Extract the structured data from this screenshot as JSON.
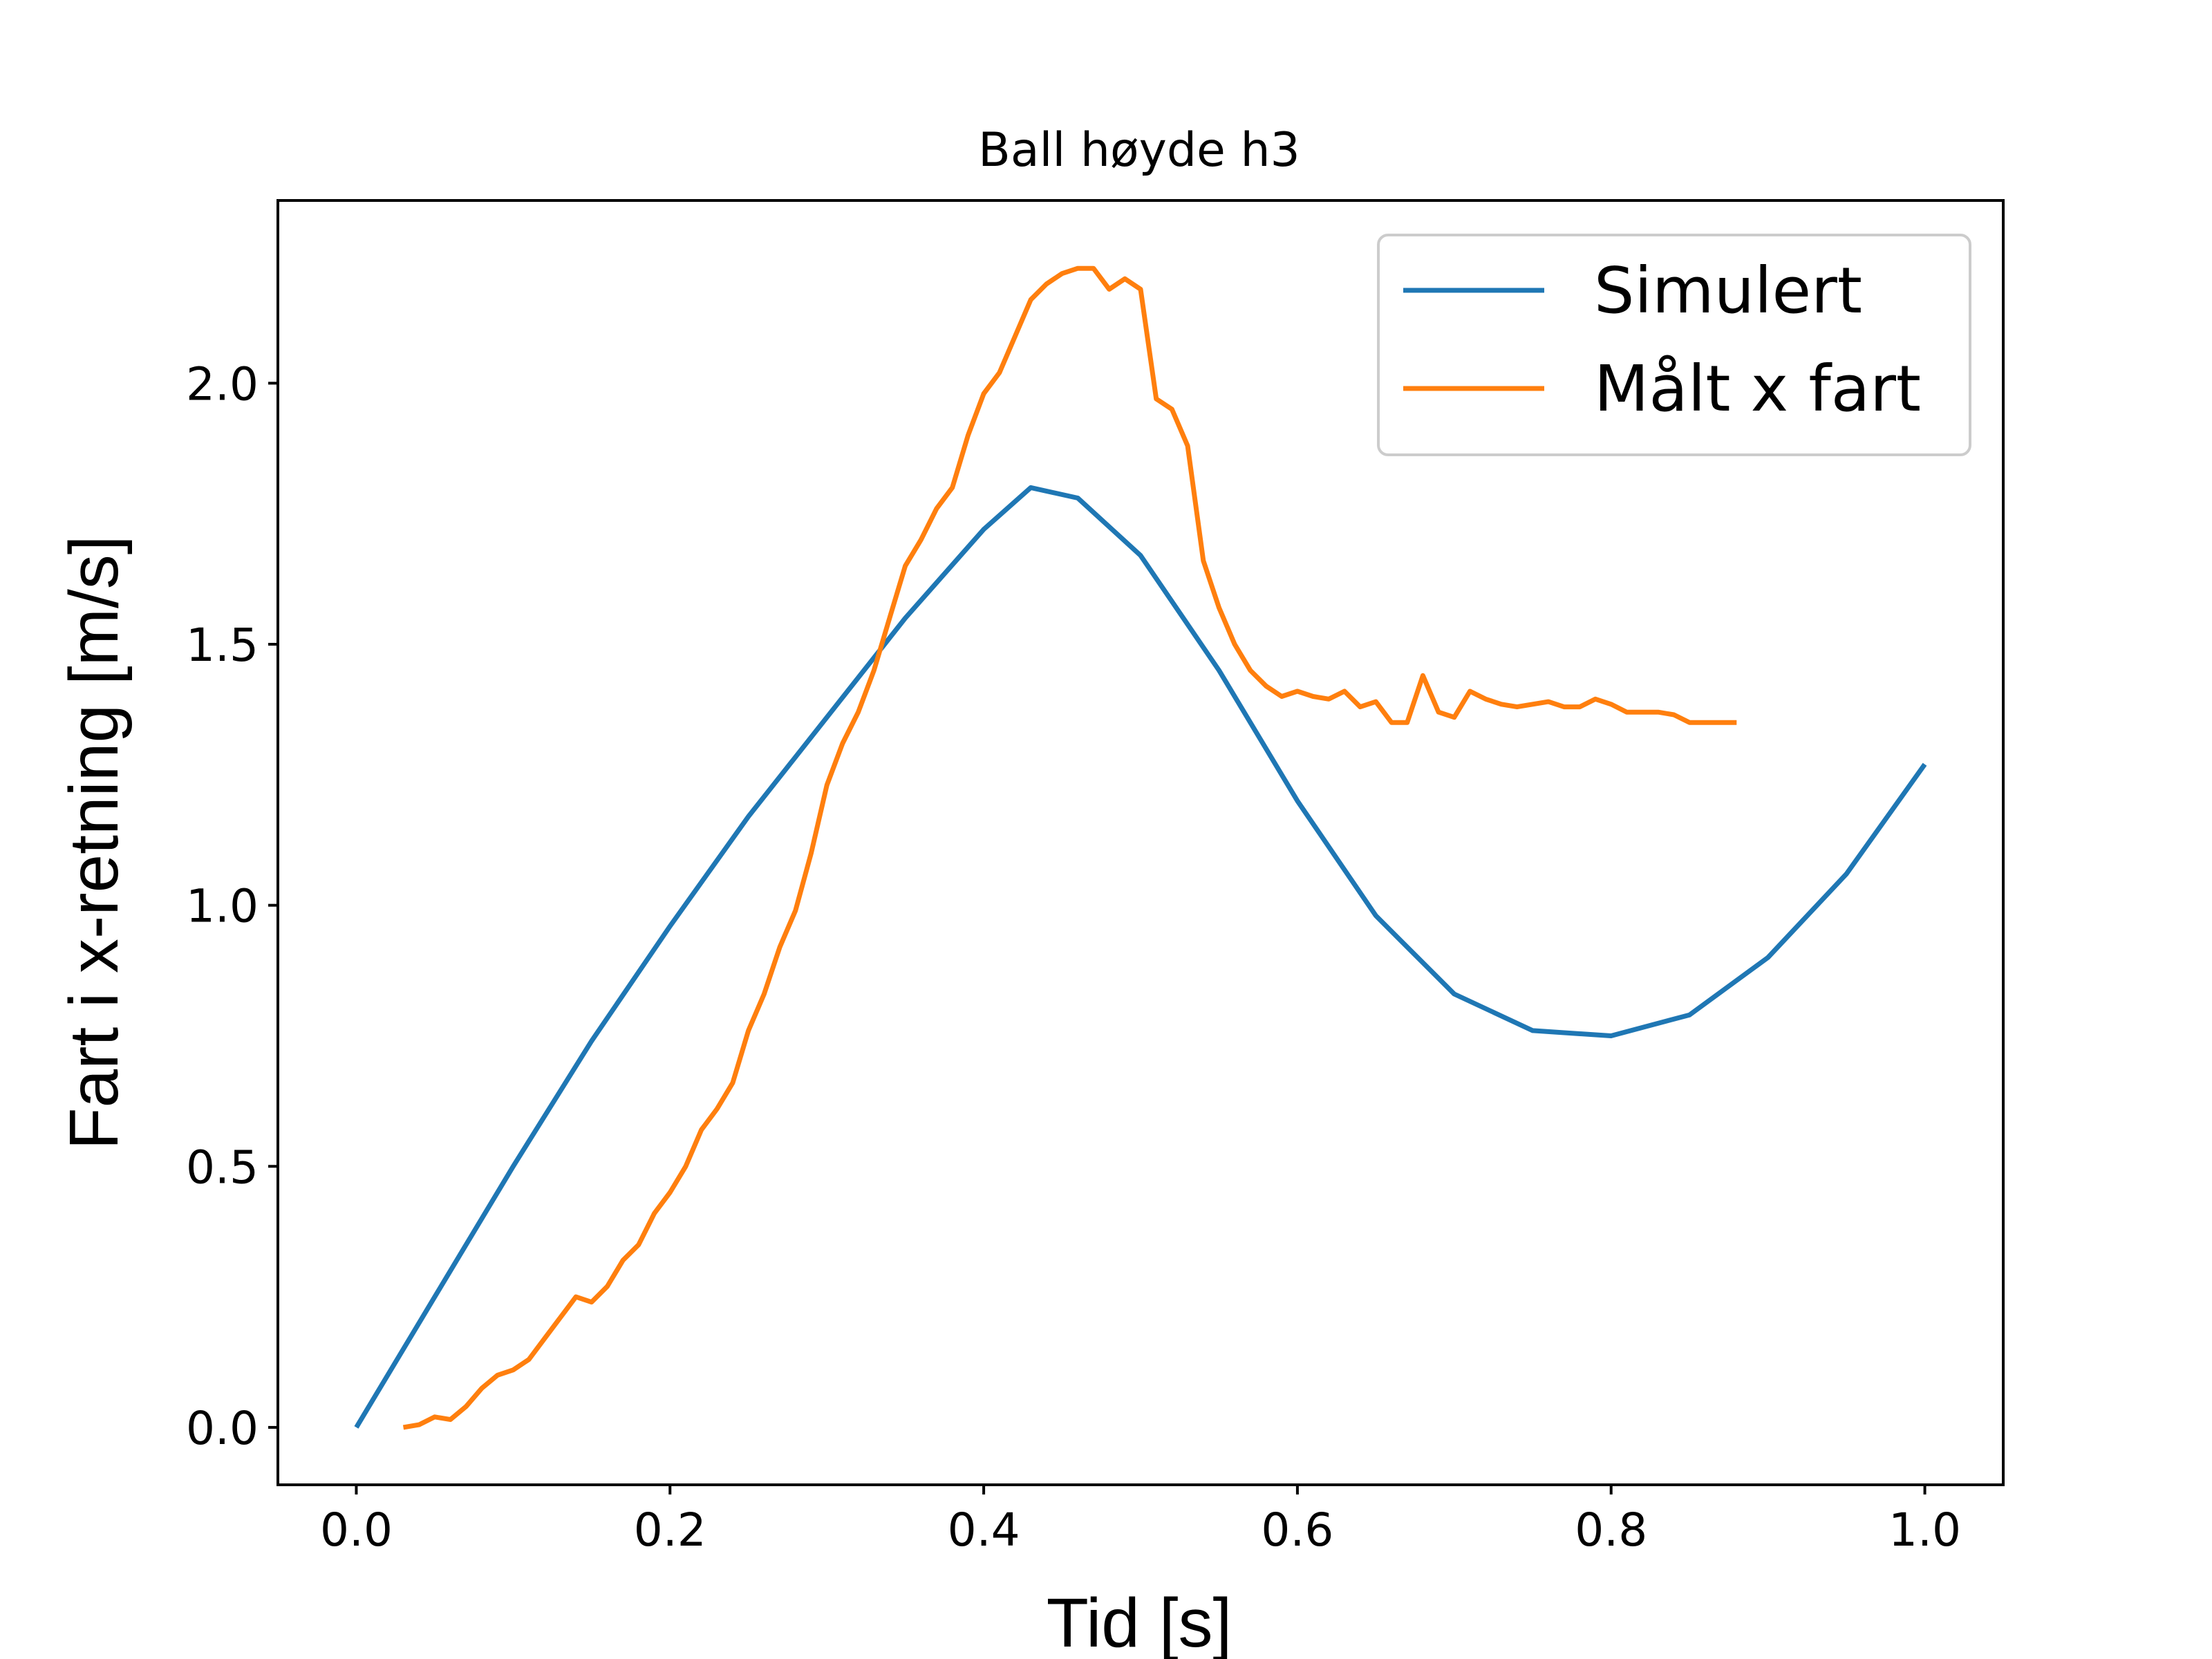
{
  "chart_data": {
    "type": "line",
    "title": "Ball høyde h3",
    "xlabel": "Tid [s]",
    "ylabel": "Fart i x-retning [m/s]",
    "xlim": [
      -0.05,
      1.05
    ],
    "ylim": [
      -0.11,
      2.35
    ],
    "xticks": [
      0.0,
      0.2,
      0.4,
      0.6,
      0.8,
      1.0
    ],
    "xtick_labels": [
      "0.0",
      "0.2",
      "0.4",
      "0.6",
      "0.8",
      "1.0"
    ],
    "yticks": [
      0.0,
      0.5,
      1.0,
      1.5,
      2.0
    ],
    "ytick_labels": [
      "0.0",
      "0.5",
      "1.0",
      "1.5",
      "2.0"
    ],
    "grid": false,
    "legend_position": "top-right",
    "series": [
      {
        "name": "Simulert",
        "color": "#1f77b4",
        "x": [
          0.0,
          0.05,
          0.1,
          0.15,
          0.2,
          0.25,
          0.3,
          0.35,
          0.4,
          0.43,
          0.46,
          0.5,
          0.55,
          0.6,
          0.65,
          0.7,
          0.75,
          0.8,
          0.85,
          0.9,
          0.95,
          1.0
        ],
        "y": [
          0.0,
          0.25,
          0.5,
          0.74,
          0.96,
          1.17,
          1.36,
          1.55,
          1.72,
          1.8,
          1.78,
          1.67,
          1.45,
          1.2,
          0.98,
          0.83,
          0.76,
          0.75,
          0.79,
          0.9,
          1.06,
          1.27
        ]
      },
      {
        "name": "Målt x fart",
        "color": "#ff7f0e",
        "x": [
          0.03,
          0.04,
          0.05,
          0.06,
          0.07,
          0.08,
          0.09,
          0.1,
          0.11,
          0.12,
          0.13,
          0.14,
          0.15,
          0.16,
          0.17,
          0.18,
          0.19,
          0.2,
          0.21,
          0.22,
          0.23,
          0.24,
          0.25,
          0.26,
          0.27,
          0.28,
          0.29,
          0.3,
          0.31,
          0.32,
          0.33,
          0.34,
          0.35,
          0.36,
          0.37,
          0.38,
          0.39,
          0.4,
          0.41,
          0.42,
          0.43,
          0.44,
          0.45,
          0.46,
          0.47,
          0.48,
          0.49,
          0.5,
          0.51,
          0.52,
          0.53,
          0.54,
          0.55,
          0.56,
          0.57,
          0.58,
          0.59,
          0.6,
          0.61,
          0.62,
          0.63,
          0.64,
          0.65,
          0.66,
          0.67,
          0.68,
          0.69,
          0.7,
          0.71,
          0.72,
          0.73,
          0.74,
          0.75,
          0.76,
          0.77,
          0.78,
          0.79,
          0.8,
          0.81,
          0.82,
          0.83,
          0.84,
          0.85,
          0.86,
          0.87,
          0.88
        ],
        "y": [
          0.0,
          0.005,
          0.02,
          0.015,
          0.04,
          0.075,
          0.1,
          0.11,
          0.13,
          0.17,
          0.21,
          0.25,
          0.24,
          0.27,
          0.32,
          0.35,
          0.41,
          0.45,
          0.5,
          0.57,
          0.61,
          0.66,
          0.76,
          0.83,
          0.92,
          0.99,
          1.1,
          1.23,
          1.31,
          1.37,
          1.45,
          1.55,
          1.65,
          1.7,
          1.76,
          1.8,
          1.9,
          1.98,
          2.02,
          2.09,
          2.16,
          2.19,
          2.21,
          2.22,
          2.22,
          2.18,
          2.2,
          2.18,
          1.97,
          1.95,
          1.88,
          1.66,
          1.57,
          1.5,
          1.45,
          1.42,
          1.4,
          1.41,
          1.4,
          1.395,
          1.41,
          1.38,
          1.39,
          1.35,
          1.35,
          1.44,
          1.37,
          1.36,
          1.41,
          1.395,
          1.385,
          1.38,
          1.385,
          1.39,
          1.38,
          1.38,
          1.395,
          1.385,
          1.37,
          1.37,
          1.37,
          1.365,
          1.35,
          1.35,
          1.35,
          1.35
        ]
      }
    ]
  }
}
